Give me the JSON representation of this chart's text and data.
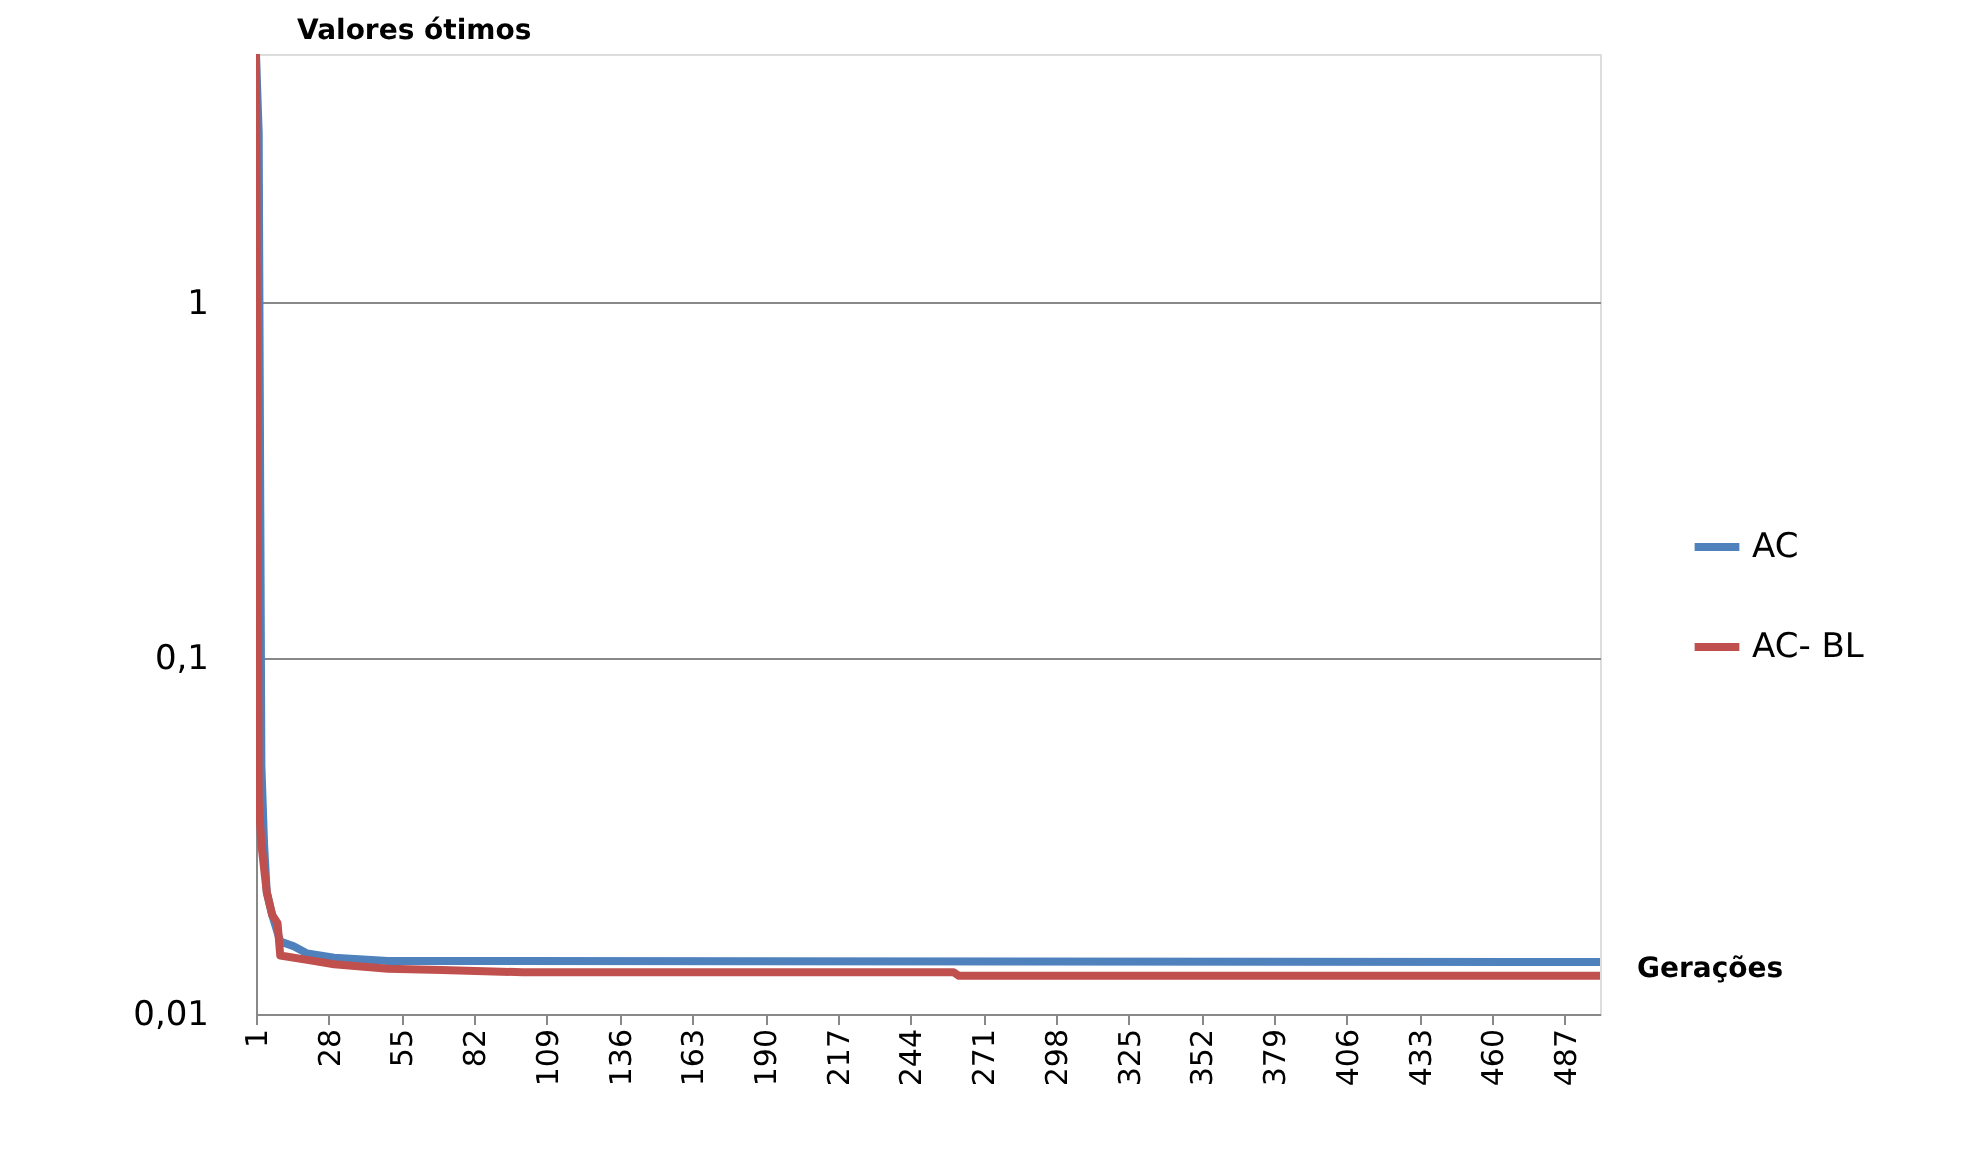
{
  "chart_data": {
    "type": "line",
    "xlabel": "Gerações",
    "ylabel": "Valores ótimos",
    "xlim": [
      1,
      500
    ],
    "xticks": [
      1,
      28,
      55,
      82,
      109,
      136,
      163,
      190,
      217,
      244,
      271,
      298,
      325,
      352,
      379,
      406,
      433,
      460,
      487
    ],
    "ylim": [
      0.01,
      5
    ],
    "yticks": [
      {
        "value": 0.01,
        "label": "0,01"
      },
      {
        "value": 0.1,
        "label": "0,1"
      },
      {
        "value": 1,
        "label": "1"
      }
    ],
    "log": "y",
    "grid": "y",
    "legend": "right",
    "line_style": "solid",
    "marker": "none",
    "series": [
      {
        "name": "AC",
        "color": "#4f81bd",
        "x": [
          1,
          2,
          3,
          4,
          5,
          7,
          10,
          15,
          20,
          30,
          50,
          500
        ],
        "values": [
          5,
          3,
          0.05,
          0.03,
          0.022,
          0.019,
          0.016,
          0.0155,
          0.0148,
          0.0144,
          0.0141,
          0.014
        ]
      },
      {
        "name": "AC- BL",
        "color": "#c0504d",
        "x": [
          1,
          2,
          3,
          5,
          7,
          9,
          10,
          20,
          30,
          50,
          70,
          100,
          260,
          262,
          500
        ],
        "values": [
          5,
          0.04,
          0.03,
          0.022,
          0.019,
          0.018,
          0.0146,
          0.0142,
          0.0138,
          0.0134,
          0.0133,
          0.0131,
          0.0131,
          0.0128,
          0.0128
        ]
      }
    ]
  }
}
